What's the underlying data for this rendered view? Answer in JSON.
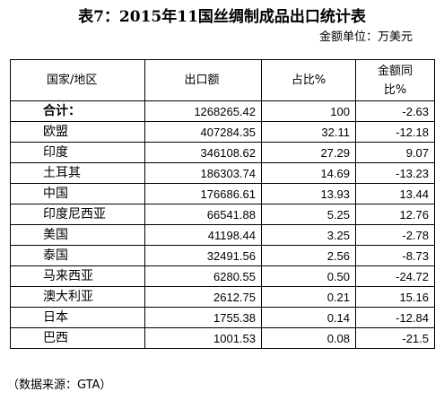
{
  "title": "表7：2015年11国丝绸制成品出口统计表",
  "unit": "金额单位：万美元",
  "table": {
    "headers": {
      "country": "国家/地区",
      "export": "出口额",
      "share": "占比%",
      "change_line1": "金额同",
      "change_line2": "比%"
    },
    "rows": [
      {
        "country": "合计：",
        "export": "1268265.42",
        "share": "100",
        "change": "-2.63"
      },
      {
        "country": "欧盟",
        "export": "407284.35",
        "share": "32.11",
        "change": "-12.18"
      },
      {
        "country": "印度",
        "export": "346108.62",
        "share": "27.29",
        "change": "9.07"
      },
      {
        "country": "土耳其",
        "export": "186303.74",
        "share": "14.69",
        "change": "-13.23"
      },
      {
        "country": "中国",
        "export": "176686.61",
        "share": "13.93",
        "change": "13.44"
      },
      {
        "country": "印度尼西亚",
        "export": "66541.88",
        "share": "5.25",
        "change": "12.76"
      },
      {
        "country": "美国",
        "export": "41198.44",
        "share": "3.25",
        "change": "-2.78"
      },
      {
        "country": "泰国",
        "export": "32491.56",
        "share": "2.56",
        "change": "-8.73"
      },
      {
        "country": "马来西亚",
        "export": "6280.55",
        "share": "0.50",
        "change": "-24.72"
      },
      {
        "country": "澳大利亚",
        "export": "2612.75",
        "share": "0.21",
        "change": "15.16"
      },
      {
        "country": "日本",
        "export": "1755.38",
        "share": "0.14",
        "change": "-12.84"
      },
      {
        "country": "巴西",
        "export": "1001.53",
        "share": "0.08",
        "change": "-21.5"
      }
    ]
  },
  "source": "（数据来源：GTA）"
}
